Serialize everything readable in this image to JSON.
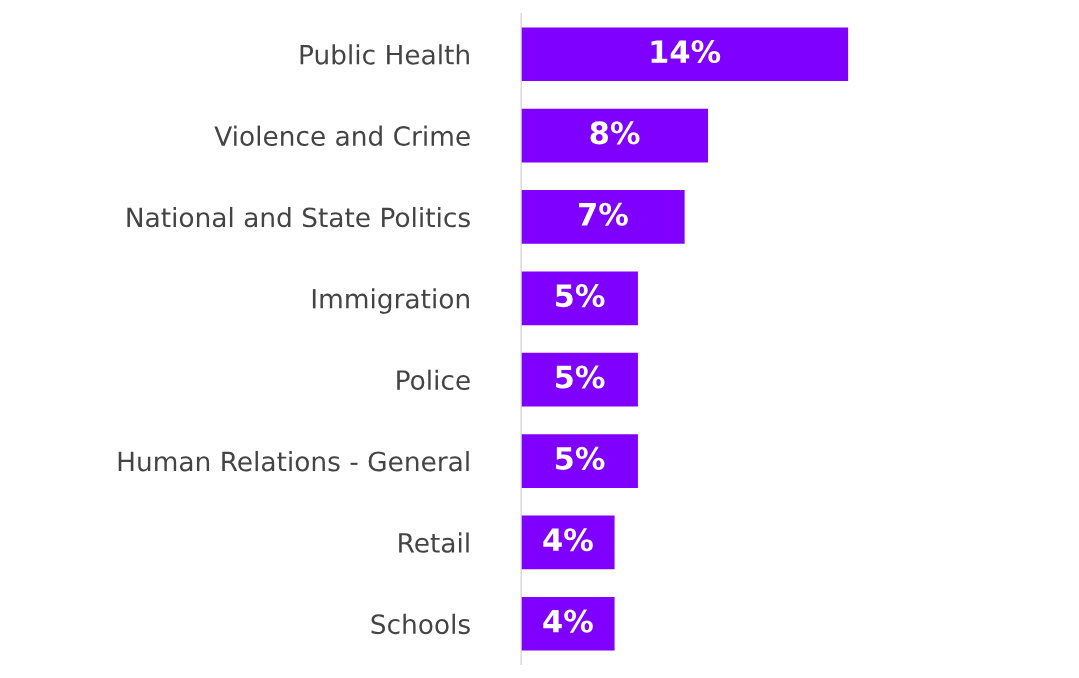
{
  "chart_data": {
    "type": "bar",
    "orientation": "horizontal",
    "categories": [
      "Public Health",
      "Violence and Crime",
      "National and State Politics",
      "Immigration",
      "Police",
      "Human Relations - General",
      "Retail",
      "Schools"
    ],
    "values": [
      14,
      8,
      7,
      5,
      5,
      5,
      4,
      4
    ],
    "value_labels": [
      "14%",
      "8%",
      "7%",
      "5%",
      "5%",
      "5%",
      "4%",
      "4%"
    ],
    "color": "#8000ff",
    "grid": false,
    "legend": false
  }
}
